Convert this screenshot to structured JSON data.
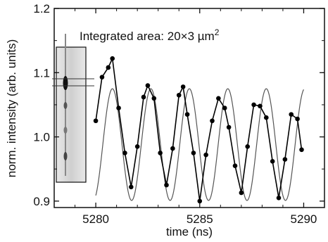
{
  "chart_data": {
    "type": "line",
    "title": "",
    "xlabel": "time (ns)",
    "ylabel": "norm. intensity  (arb. units)",
    "xlim": [
      5278,
      5291
    ],
    "ylim": [
      0.89,
      1.2
    ],
    "xticks": [
      5280,
      5285,
      5290
    ],
    "yticks": [
      0.9,
      1.0,
      1.1,
      1.2
    ],
    "xtick_labels": [
      "5280",
      "5285",
      "5290"
    ],
    "ytick_labels": [
      "0.9",
      "1.0",
      "1.1",
      "1.2"
    ],
    "annotation": {
      "prefix": "Integrated area: 20×3 µm",
      "superscript": "2"
    },
    "grid": false,
    "series": [
      {
        "style": "line-with-markers",
        "color": "#000000",
        "x": [
          5280.0,
          5280.3,
          5280.6,
          5280.8,
          5281.1,
          5281.4,
          5281.7,
          5282.0,
          5282.3,
          5282.5,
          5282.8,
          5283.1,
          5283.4,
          5283.7,
          5284.0,
          5284.2,
          5284.4,
          5284.7,
          5285.0,
          5285.3,
          5285.6,
          5285.9,
          5286.2,
          5286.4,
          5286.7,
          5287.0,
          5287.3,
          5287.6,
          5287.9,
          5288.2,
          5288.5,
          5288.8,
          5289.1,
          5289.4,
          5289.7,
          5289.9
        ],
        "y": [
          1.025,
          1.093,
          1.108,
          1.122,
          1.045,
          0.975,
          0.922,
          0.985,
          1.062,
          1.08,
          1.06,
          0.975,
          0.925,
          0.982,
          1.065,
          1.078,
          1.035,
          0.975,
          0.9,
          0.972,
          1.025,
          1.06,
          1.045,
          1.015,
          0.955,
          0.913,
          0.985,
          1.05,
          1.048,
          1.03,
          0.962,
          0.905,
          0.965,
          1.035,
          1.028,
          0.98
        ]
      },
      {
        "style": "line",
        "color": "#555555",
        "function": "sine",
        "amplitude": 0.087,
        "offset": 0.988,
        "period": 1.85,
        "peak_at": 5280.8,
        "x_range": [
          5280.0,
          5290.0
        ]
      }
    ],
    "inset": {
      "type": "image",
      "description": "grayscale inset with horizontal marker lines"
    }
  }
}
